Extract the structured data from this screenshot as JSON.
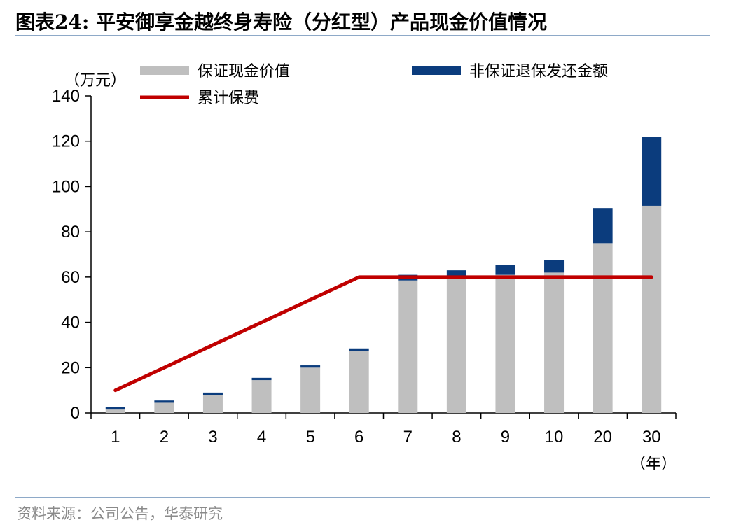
{
  "figure": {
    "title": "图表24:   平安御享金越终身寿险（分红型）产品现金价值情况",
    "source": "资料来源：公司公告，华泰研究"
  },
  "chart_data": {
    "type": "bar",
    "stacked": true,
    "categories": [
      "1",
      "2",
      "3",
      "4",
      "5",
      "6",
      "7",
      "8",
      "9",
      "10",
      "20",
      "30"
    ],
    "series": [
      {
        "name": "保证现金价值",
        "kind": "bar",
        "color": "#bfbfbf",
        "values": [
          1.5,
          4.5,
          8,
          14.5,
          20,
          27.5,
          58.5,
          60.5,
          61,
          62,
          75,
          91.5
        ]
      },
      {
        "name": "非保证退保发还金额",
        "kind": "bar",
        "color": "#0b3c7d",
        "values": [
          1,
          1,
          1,
          1,
          1,
          1,
          2.5,
          2.5,
          4.5,
          5.5,
          15.5,
          30.5
        ]
      },
      {
        "name": "累计保费",
        "kind": "line",
        "color": "#c00000",
        "values": [
          10,
          null,
          null,
          40,
          null,
          60,
          60,
          60,
          60,
          60,
          60,
          60
        ]
      }
    ],
    "ylabel": "（万元）",
    "xlabel": "（年）",
    "ylim": [
      0,
      140
    ],
    "yticks": [
      "0",
      "20",
      "40",
      "60",
      "80",
      "100",
      "120",
      "140"
    ],
    "grid": false,
    "legend_position": "top"
  }
}
